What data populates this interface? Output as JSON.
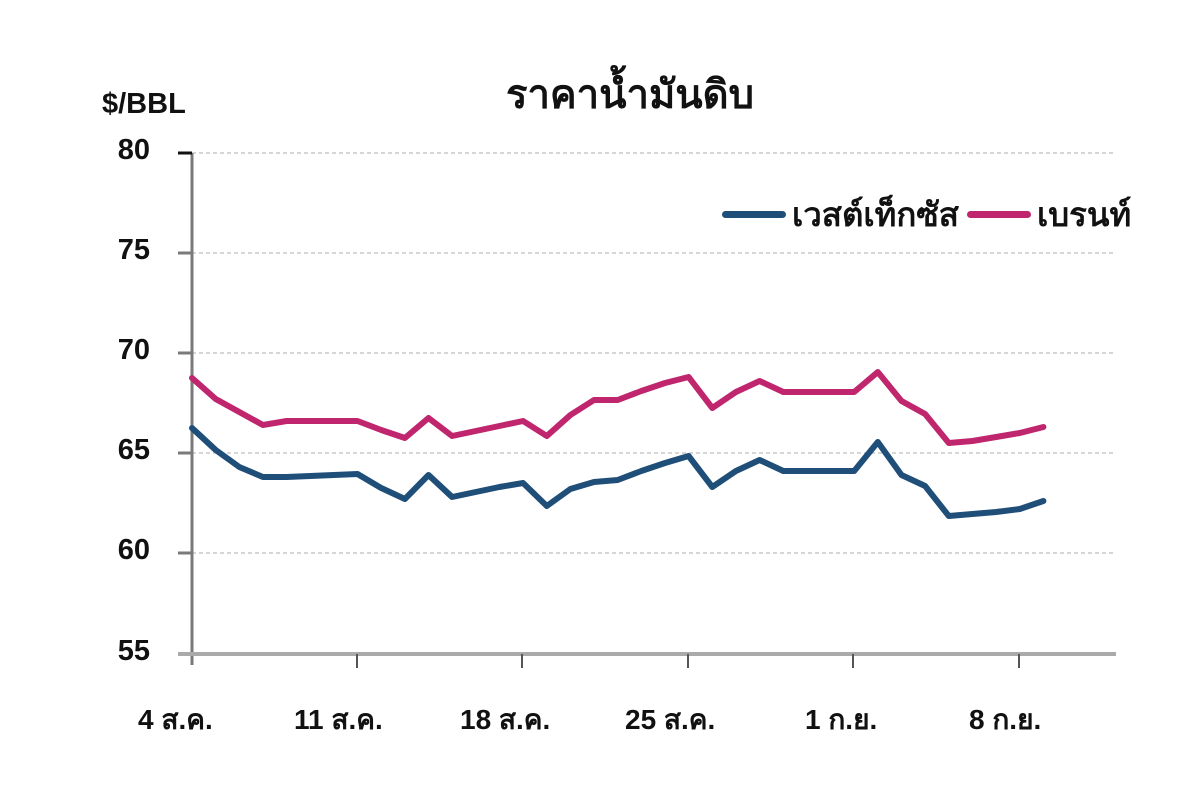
{
  "chart_data": {
    "type": "line",
    "title": "ราคาน้ำมันดิบ",
    "ylabel": "$/BBL",
    "xlabel": "",
    "ylim": [
      55,
      80
    ],
    "yticks": [
      55,
      60,
      65,
      70,
      75,
      80
    ],
    "xticks": [
      "4 ส.ค.",
      "11 ส.ค.",
      "18 ส.ค.",
      "25 ส.ค.",
      "1 ก.ย.",
      "8 ก.ย."
    ],
    "grid": "horizontal dashed",
    "legend_position": "upper right",
    "x_day_offsets": [
      0,
      1,
      2,
      3,
      4,
      6,
      7,
      8,
      9,
      10,
      11,
      13,
      14,
      15,
      16,
      17,
      18,
      19,
      20,
      21,
      22,
      23,
      24,
      25,
      26,
      27,
      28,
      29,
      30,
      31,
      32,
      33,
      34,
      35,
      36
    ],
    "series": [
      {
        "name": "เวสต์เท็กซัส",
        "color": "#1f4e79",
        "values": [
          66.25,
          65.15,
          64.3,
          63.8,
          63.8,
          63.9,
          63.95,
          63.25,
          62.7,
          63.9,
          62.8,
          63.3,
          63.5,
          62.35,
          63.2,
          63.55,
          63.65,
          64.1,
          64.5,
          64.85,
          63.3,
          64.1,
          64.65,
          64.1,
          64.1,
          64.1,
          64.1,
          65.55,
          63.9,
          63.35,
          61.85,
          61.95,
          62.05,
          62.2,
          62.6
        ]
      },
      {
        "name": "เบรนท์",
        "color": "#c0266e",
        "values": [
          68.75,
          67.7,
          67.05,
          66.4,
          66.6,
          66.6,
          66.6,
          66.15,
          65.75,
          66.75,
          65.85,
          66.35,
          66.6,
          65.85,
          66.9,
          67.65,
          67.65,
          68.1,
          68.5,
          68.8,
          67.25,
          68.05,
          68.6,
          68.05,
          68.05,
          68.05,
          68.05,
          69.05,
          67.6,
          66.95,
          65.5,
          65.6,
          65.8,
          66.0,
          66.3
        ]
      }
    ]
  },
  "title": "ราคาน้ำมันดิบ",
  "y_unit": "$/BBL",
  "y_labels": [
    "80",
    "75",
    "70",
    "65",
    "60",
    "55"
  ],
  "x_labels": [
    "4 ส.ค.",
    "11 ส.ค.",
    "18 ส.ค.",
    "25 ส.ค.",
    "1 ก.ย.",
    "8 ก.ย."
  ],
  "legend": [
    {
      "label": "เวสต์เท็กซัส",
      "color": "#1f4e79"
    },
    {
      "label": "เบรนท์",
      "color": "#c0266e"
    }
  ]
}
